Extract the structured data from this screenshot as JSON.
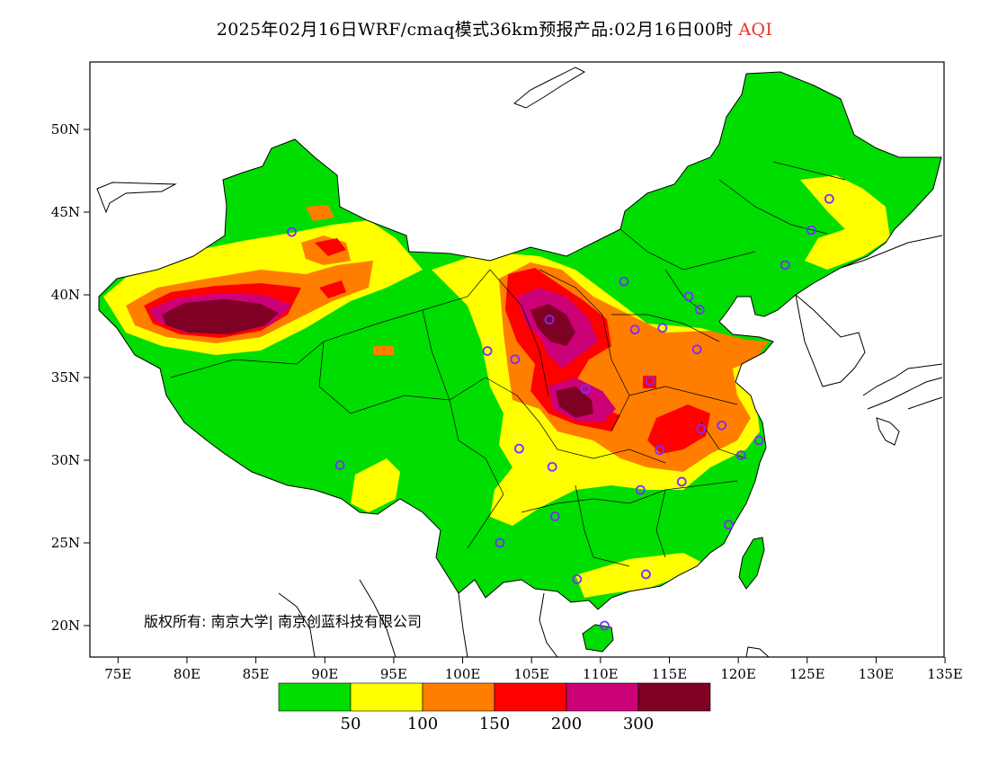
{
  "title": {
    "prefix": "2025年02月16日WRF/cmaq模式36km预报产品:02月16日00时",
    "variable": "AQI",
    "variable_color": "#e8322d"
  },
  "axes": {
    "y_ticks": [
      "50N",
      "45N",
      "40N",
      "35N",
      "30N",
      "25N",
      "20N"
    ],
    "x_ticks": [
      "75E",
      "80E",
      "85E",
      "90E",
      "95E",
      "100E",
      "105E",
      "110E",
      "115E",
      "120E",
      "125E",
      "130E",
      "135E"
    ]
  },
  "legend": {
    "colors": [
      "#00dd00",
      "#ffff00",
      "#ff7e00",
      "#ff0000",
      "#cc0077",
      "#7e0023"
    ],
    "labels": [
      "50",
      "100",
      "150",
      "200",
      "300"
    ]
  },
  "credit": "版权所有: 南京大学| 南京创蓝科技有限公司",
  "colors": {
    "ocean": "#ffffff",
    "border": "#000000",
    "station_marker": "#7b2cff"
  },
  "stations": [
    {
      "lon": 87.6,
      "lat": 43.8
    },
    {
      "lon": 126.6,
      "lat": 45.8
    },
    {
      "lon": 125.3,
      "lat": 43.9
    },
    {
      "lon": 123.4,
      "lat": 41.8
    },
    {
      "lon": 111.7,
      "lat": 40.8
    },
    {
      "lon": 116.4,
      "lat": 39.9
    },
    {
      "lon": 117.2,
      "lat": 39.1
    },
    {
      "lon": 106.3,
      "lat": 38.5
    },
    {
      "lon": 112.5,
      "lat": 37.9
    },
    {
      "lon": 114.5,
      "lat": 38.0
    },
    {
      "lon": 101.8,
      "lat": 36.6
    },
    {
      "lon": 103.8,
      "lat": 36.1
    },
    {
      "lon": 117.0,
      "lat": 36.7
    },
    {
      "lon": 113.6,
      "lat": 34.8
    },
    {
      "lon": 108.9,
      "lat": 34.3
    },
    {
      "lon": 104.1,
      "lat": 30.7
    },
    {
      "lon": 106.5,
      "lat": 29.6
    },
    {
      "lon": 114.3,
      "lat": 30.6
    },
    {
      "lon": 117.3,
      "lat": 31.9
    },
    {
      "lon": 118.8,
      "lat": 32.1
    },
    {
      "lon": 121.5,
      "lat": 31.2
    },
    {
      "lon": 120.2,
      "lat": 30.3
    },
    {
      "lon": 115.9,
      "lat": 28.7
    },
    {
      "lon": 112.9,
      "lat": 28.2
    },
    {
      "lon": 119.3,
      "lat": 26.1
    },
    {
      "lon": 106.7,
      "lat": 26.6
    },
    {
      "lon": 102.7,
      "lat": 25.0
    },
    {
      "lon": 108.3,
      "lat": 22.8
    },
    {
      "lon": 113.3,
      "lat": 23.1
    },
    {
      "lon": 110.3,
      "lat": 20.0
    },
    {
      "lon": 91.1,
      "lat": 29.7
    }
  ]
}
